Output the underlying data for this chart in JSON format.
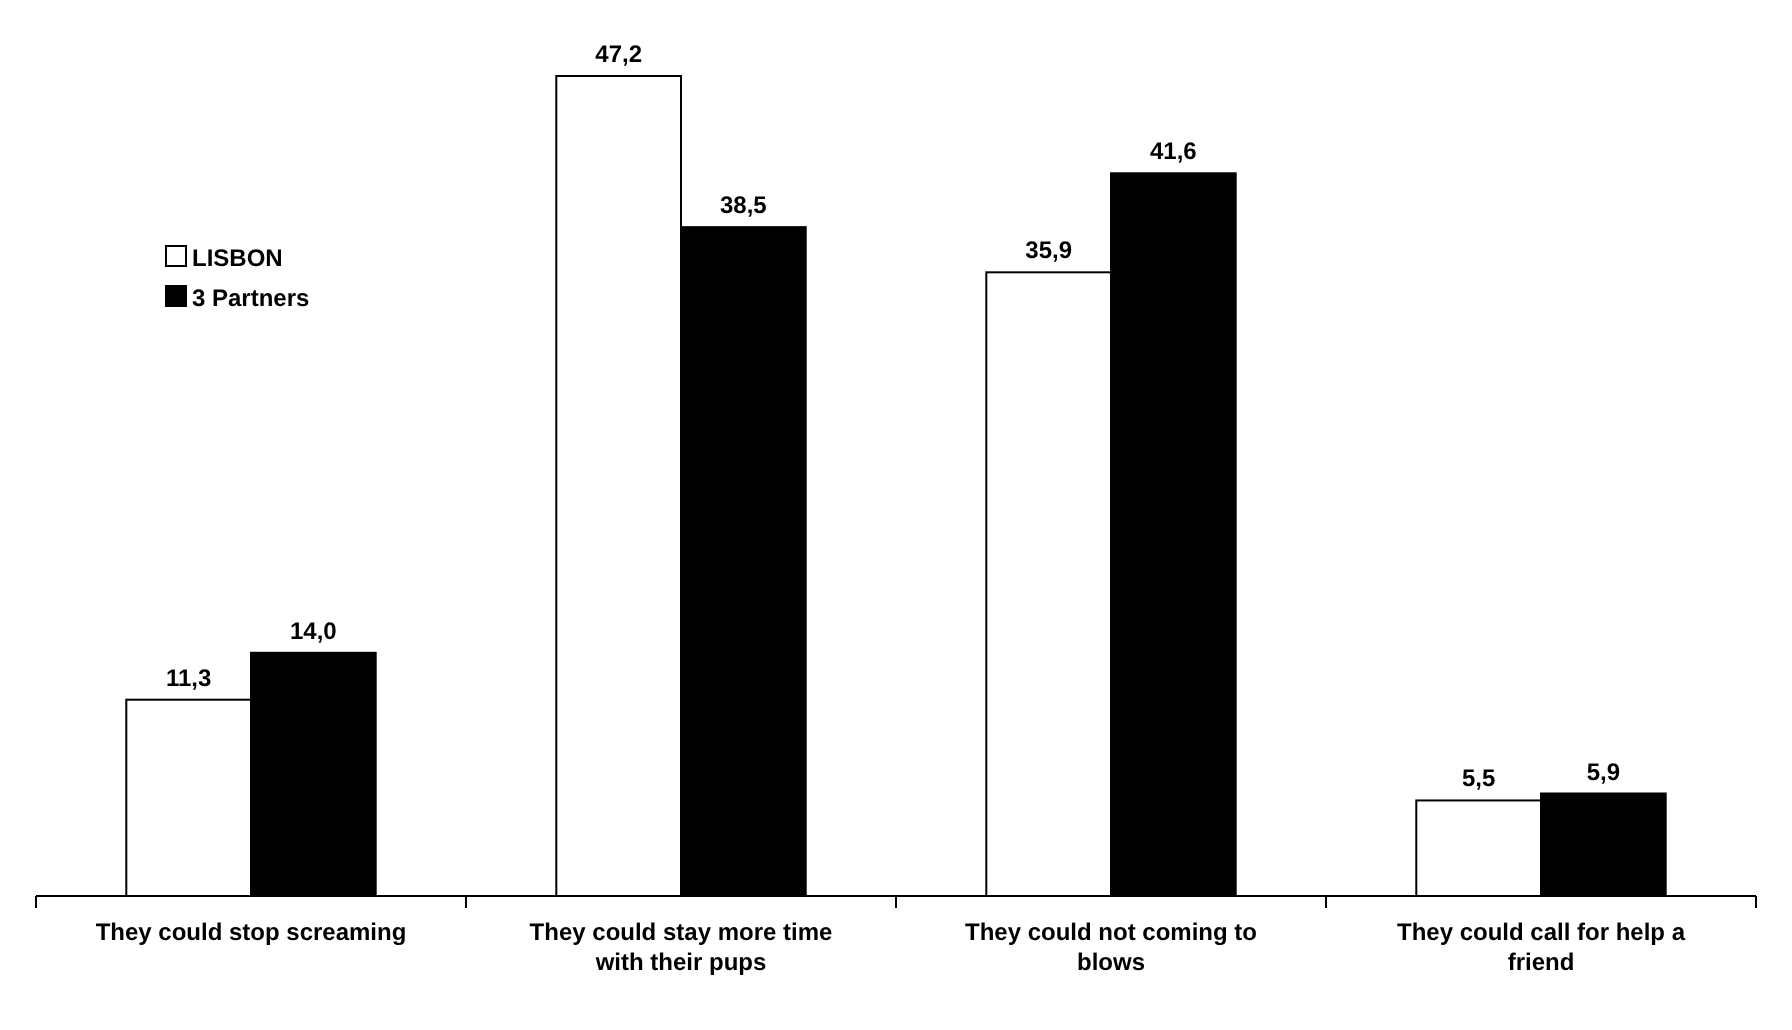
{
  "chart_data": {
    "type": "bar",
    "categories": [
      "They could stop screaming",
      "They could stay more time with their pups",
      "They could not coming to blows",
      "They could call for help a friend"
    ],
    "series": [
      {
        "name": "LISBON",
        "color": "#ffffff",
        "values": [
          11.3,
          47.2,
          35.9,
          5.5
        ],
        "value_labels": [
          "11,3",
          "47,2",
          "35,9",
          "5,5"
        ]
      },
      {
        "name": "3 Partners",
        "color": "#000000",
        "values": [
          14.0,
          38.5,
          41.6,
          5.9
        ],
        "value_labels": [
          "14,0",
          "38,5",
          "41,6",
          "5,9"
        ]
      }
    ],
    "legend": "top left"
  }
}
